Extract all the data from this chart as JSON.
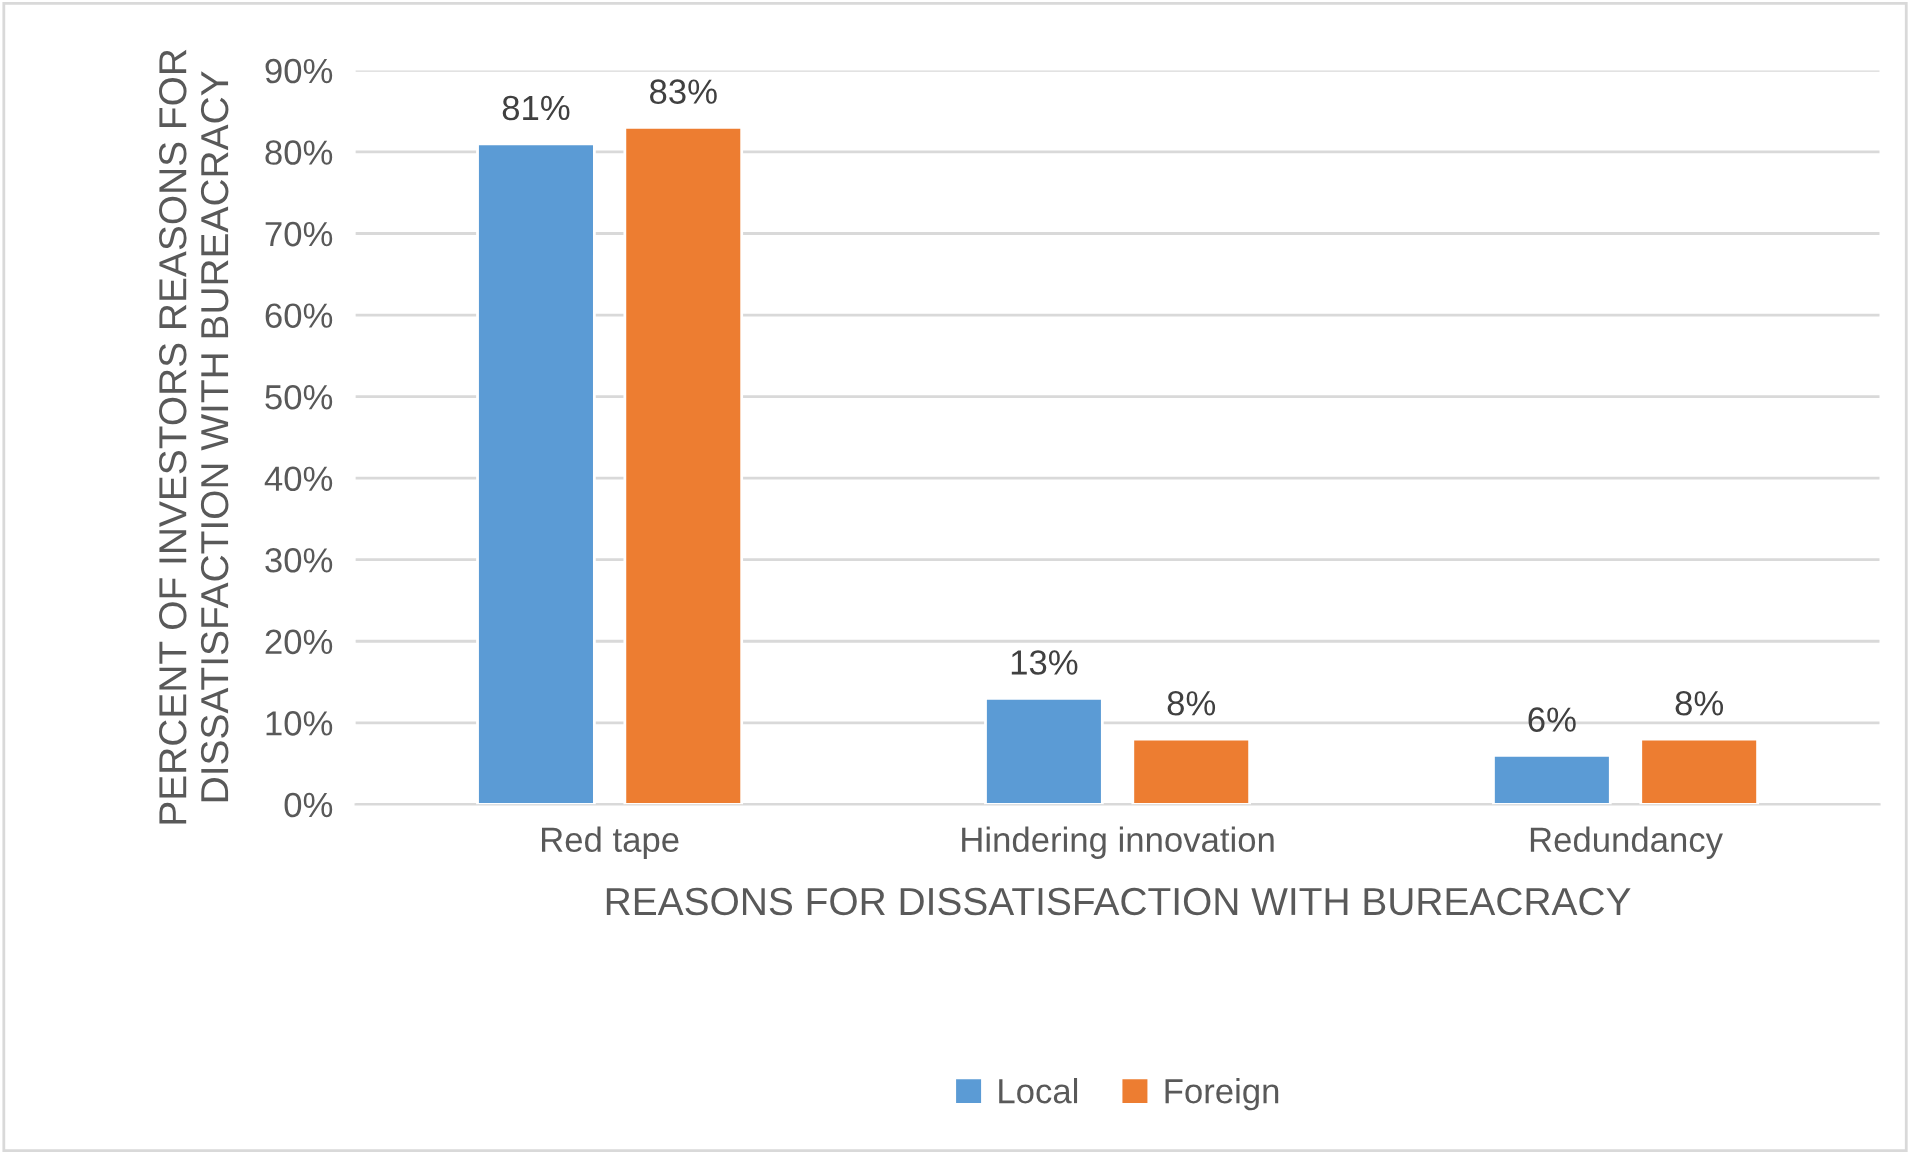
{
  "chart_data": {
    "type": "bar",
    "xlabel": "REASONS FOR DISSATISFACTION WITH BUREACRACY",
    "ylabel": "PERCENT OF INVESTORS REASONS FOR\nDISSATISFACTION WITH BUREACRACY",
    "categories": [
      "Red tape",
      "Hindering innovation",
      "Redundancy"
    ],
    "series": [
      {
        "name": "Local",
        "color": "#5b9bd5",
        "values": [
          81,
          13,
          6
        ],
        "value_labels": [
          "81%",
          "13%",
          "6%"
        ]
      },
      {
        "name": "Foreign",
        "color": "#ed7d31",
        "values": [
          83,
          8,
          8
        ],
        "value_labels": [
          "83%",
          "8%",
          "8%"
        ]
      }
    ],
    "ylim": [
      0,
      90
    ],
    "yticks": [
      {
        "value": 0,
        "label": "0%"
      },
      {
        "value": 10,
        "label": "10%"
      },
      {
        "value": 20,
        "label": "20%"
      },
      {
        "value": 30,
        "label": "30%"
      },
      {
        "value": 40,
        "label": "40%"
      },
      {
        "value": 50,
        "label": "50%"
      },
      {
        "value": 60,
        "label": "60%"
      },
      {
        "value": 70,
        "label": "70%"
      },
      {
        "value": 80,
        "label": "80%"
      },
      {
        "value": 90,
        "label": "90%"
      }
    ],
    "grid": "y",
    "legend": "bottom"
  }
}
